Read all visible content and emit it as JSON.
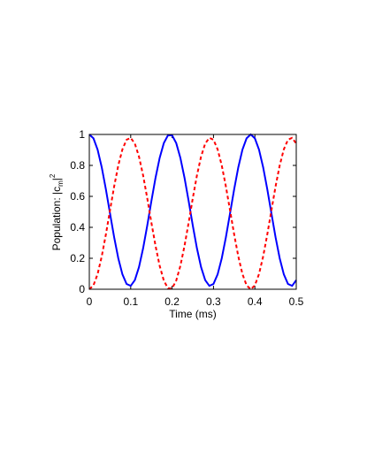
{
  "chart_data": {
    "type": "line",
    "xlabel": "Time (ms)",
    "ylabel": {
      "text": "Population: |c",
      "sub": "m",
      "mid": "|",
      "sup": "2"
    },
    "x": [
      0,
      0.01,
      0.02,
      0.03,
      0.04,
      0.05,
      0.06,
      0.07,
      0.08,
      0.09,
      0.1,
      0.11,
      0.12,
      0.13,
      0.14,
      0.15,
      0.16,
      0.17,
      0.18,
      0.19,
      0.2,
      0.21,
      0.22,
      0.23,
      0.24,
      0.25,
      0.26,
      0.27,
      0.28,
      0.29,
      0.3,
      0.31,
      0.32,
      0.33,
      0.34,
      0.35,
      0.36,
      0.37,
      0.38,
      0.39,
      0.4,
      0.41,
      0.42,
      0.43,
      0.44,
      0.45,
      0.46,
      0.47,
      0.48,
      0.49,
      0.5
    ],
    "series": [
      {
        "color": "#0000ff",
        "dashed": false,
        "values": [
          1,
          0.975,
          0.902,
          0.788,
          0.646,
          0.49,
          0.336,
          0.2,
          0.096,
          0.034,
          0.022,
          0.059,
          0.143,
          0.265,
          0.412,
          0.57,
          0.72,
          0.849,
          0.944,
          0.994,
          0.994,
          0.944,
          0.849,
          0.72,
          0.57,
          0.412,
          0.265,
          0.143,
          0.059,
          0.022,
          0.034,
          0.096,
          0.2,
          0.336,
          0.49,
          0.646,
          0.788,
          0.902,
          0.975,
          1,
          0.975,
          0.902,
          0.788,
          0.646,
          0.49,
          0.336,
          0.2,
          0.096,
          0.034,
          0.022,
          0.059
        ]
      },
      {
        "color": "#ff0000",
        "dashed": true,
        "values": [
          0,
          0.025,
          0.098,
          0.212,
          0.354,
          0.51,
          0.664,
          0.8,
          0.904,
          0.966,
          0.978,
          0.941,
          0.857,
          0.735,
          0.588,
          0.43,
          0.28,
          0.151,
          0.056,
          0.006,
          0.006,
          0.056,
          0.151,
          0.28,
          0.43,
          0.588,
          0.735,
          0.857,
          0.941,
          0.978,
          0.966,
          0.904,
          0.8,
          0.664,
          0.51,
          0.354,
          0.212,
          0.098,
          0.025,
          0,
          0.025,
          0.098,
          0.212,
          0.354,
          0.51,
          0.664,
          0.8,
          0.904,
          0.966,
          0.978,
          0.941
        ]
      }
    ],
    "xlim": [
      0,
      0.5
    ],
    "xticks": [
      0,
      0.1,
      0.2,
      0.3,
      0.4,
      0.5
    ],
    "ylim": [
      0,
      1
    ],
    "yticks": [
      0,
      0.2,
      0.4,
      0.6,
      0.8,
      1
    ],
    "grid": false
  }
}
